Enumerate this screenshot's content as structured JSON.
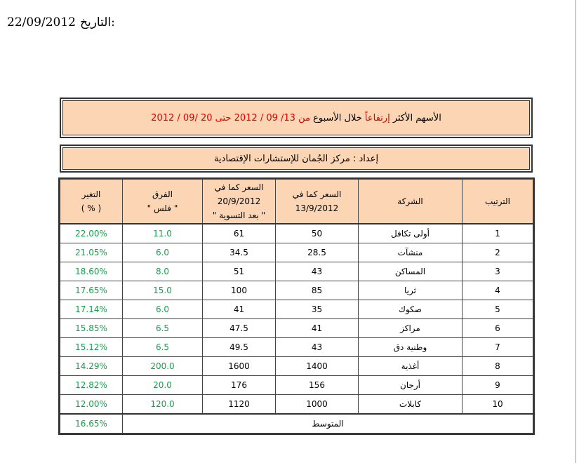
{
  "date": {
    "label": "التاريخ:",
    "value": "22/09/2012"
  },
  "title": {
    "part1": "الأسهم الأكثر",
    "part2": "إرتفاعاً",
    "part3": "خلال الأسبوع",
    "part4": "من 13/ 09 / 2012 حتى 20 /09 / 2012"
  },
  "prepared_by": "إعداد : مركز الجُمان للإستشارات الإقتصادية",
  "headers": {
    "rank": "الترتيب",
    "company": "الشركة",
    "price1_line1": "السعر كما في",
    "price1_line2": "13/9/2012",
    "price2_line1": "السعر كما في",
    "price2_line2": "20/9/2012",
    "price2_line3": "\" بعد التسوية \"",
    "diff_line1": "الفرق",
    "diff_line2": "\" فلس \"",
    "change_line1": "التغير",
    "change_line2": "( % )"
  },
  "rows": [
    {
      "rank": "1",
      "company": "أولى تكافل",
      "p1": "50",
      "p2": "61",
      "diff": "11.0",
      "change": "22.00%"
    },
    {
      "rank": "2",
      "company": "منشآت",
      "p1": "28.5",
      "p2": "34.5",
      "diff": "6.0",
      "change": "21.05%"
    },
    {
      "rank": "3",
      "company": "المساكن",
      "p1": "43",
      "p2": "51",
      "diff": "8.0",
      "change": "18.60%"
    },
    {
      "rank": "4",
      "company": "ثريا",
      "p1": "85",
      "p2": "100",
      "diff": "15.0",
      "change": "17.65%"
    },
    {
      "rank": "5",
      "company": "صكوك",
      "p1": "35",
      "p2": "41",
      "diff": "6.0",
      "change": "17.14%"
    },
    {
      "rank": "6",
      "company": "مراكز",
      "p1": "41",
      "p2": "47.5",
      "diff": "6.5",
      "change": "15.85%"
    },
    {
      "rank": "7",
      "company": "وطنية دق",
      "p1": "43",
      "p2": "49.5",
      "diff": "6.5",
      "change": "15.12%"
    },
    {
      "rank": "8",
      "company": "أغذية",
      "p1": "1400",
      "p2": "1600",
      "diff": "200.0",
      "change": "14.29%"
    },
    {
      "rank": "9",
      "company": "أرجان",
      "p1": "156",
      "p2": "176",
      "diff": "20.0",
      "change": "12.82%"
    },
    {
      "rank": "10",
      "company": "كابلات",
      "p1": "1000",
      "p2": "1120",
      "diff": "120.0",
      "change": "12.00%"
    }
  ],
  "average": {
    "label": "المتوسط",
    "value": "16.65%"
  },
  "colors": {
    "header_bg": "#fcd5b4",
    "accent_red": "#e00000",
    "accent_green": "#13a04a"
  }
}
